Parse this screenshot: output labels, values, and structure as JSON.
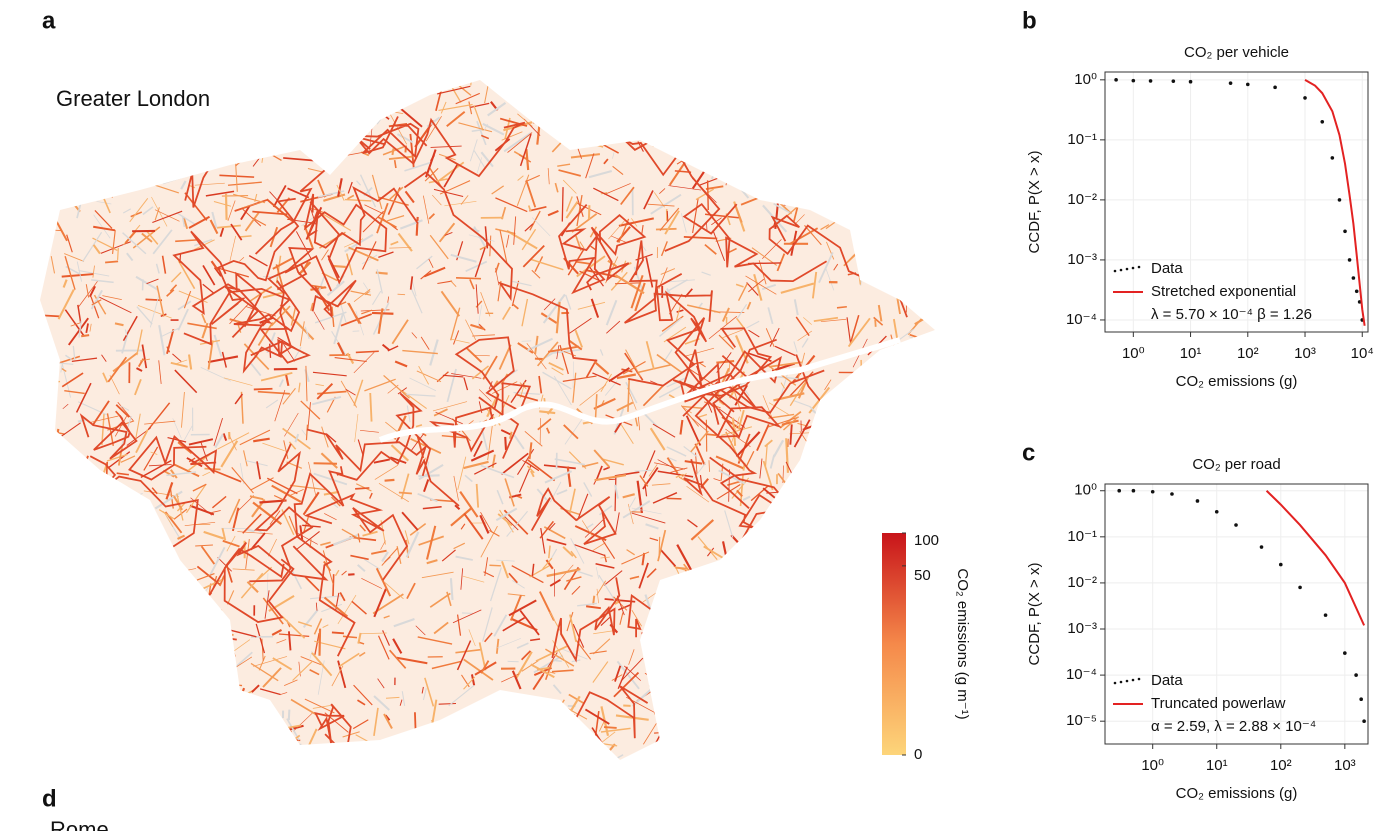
{
  "panel_labels": [
    "a",
    "b",
    "c",
    "d"
  ],
  "map": {
    "title": "Greater London",
    "next_title": "Rome",
    "colorbar": {
      "label": "CO₂ emissions (g m⁻¹)",
      "lim": [
        0,
        100
      ],
      "ticks": [
        0,
        50,
        100
      ],
      "scale": "symlog",
      "colors": [
        "#fdd57a",
        "#f5894a",
        "#c8141a"
      ]
    }
  },
  "chart_data": [
    {
      "type": "line",
      "title": "CO₂ per vehicle",
      "xlabel": "CO₂ emissions (g)",
      "ylabel": "CCDF, P(X > x)",
      "log_x": true,
      "log_y": true,
      "grid": true,
      "legend": "lower left",
      "xlim": [
        0.32,
        12600
      ],
      "xticks": [
        {
          "value": 1,
          "label": "10⁰"
        },
        {
          "value": 10,
          "label": "10¹"
        },
        {
          "value": 100,
          "label": "10²"
        },
        {
          "value": 1000,
          "label": "10³"
        },
        {
          "value": 10000,
          "label": "10⁴"
        }
      ],
      "ylim": [
        6.3e-05,
        1.35
      ],
      "yticks": [
        {
          "value": 1,
          "label": "10⁰"
        },
        {
          "value": 0.1,
          "label": "10⁻¹"
        },
        {
          "value": 0.01,
          "label": "10⁻²"
        },
        {
          "value": 0.001,
          "label": "10⁻³"
        },
        {
          "value": 0.0001,
          "label": "10⁻⁴"
        }
      ],
      "annotation": "λ = 5.70 × 10⁻⁴ β = 1.26",
      "series": [
        {
          "name": "Data",
          "color": "#111111",
          "style": "points",
          "x": [
            0.5,
            1,
            2,
            5,
            10,
            50,
            100,
            300,
            1000,
            2000,
            3000,
            4000,
            5000,
            6000,
            7000,
            8000,
            9000,
            10000
          ],
          "values": [
            1,
            0.97,
            0.96,
            0.95,
            0.93,
            0.88,
            0.84,
            0.75,
            0.5,
            0.2,
            0.05,
            0.01,
            0.003,
            0.001,
            0.0005,
            0.0003,
            0.0002,
            0.0001
          ]
        },
        {
          "name": "Stretched exponential",
          "color": "#e32222",
          "style": "line",
          "x": [
            1000,
            1500,
            2000,
            3000,
            4000,
            5000,
            6000,
            7000,
            8000,
            9000,
            10000,
            11000
          ],
          "values": [
            1,
            0.8,
            0.6,
            0.3,
            0.12,
            0.04,
            0.012,
            0.004,
            0.0012,
            0.0004,
            0.00015,
            8e-05
          ]
        }
      ]
    },
    {
      "type": "line",
      "title": "CO₂ per road",
      "xlabel": "CO₂ emissions (g)",
      "ylabel": "CCDF, P(X > x)",
      "log_x": true,
      "log_y": true,
      "grid": true,
      "legend": "lower left",
      "xlim": [
        0.18,
        2300
      ],
      "xticks": [
        {
          "value": 1,
          "label": "10⁰"
        },
        {
          "value": 10,
          "label": "10¹"
        },
        {
          "value": 100,
          "label": "10²"
        },
        {
          "value": 1000,
          "label": "10³"
        }
      ],
      "ylim": [
        3.2e-06,
        1.4
      ],
      "yticks": [
        {
          "value": 1,
          "label": "10⁰"
        },
        {
          "value": 0.1,
          "label": "10⁻¹"
        },
        {
          "value": 0.01,
          "label": "10⁻²"
        },
        {
          "value": 0.001,
          "label": "10⁻³"
        },
        {
          "value": 0.0001,
          "label": "10⁻⁴"
        },
        {
          "value": 1e-05,
          "label": "10⁻⁵"
        }
      ],
      "annotation": "α = 2.59, λ = 2.88 × 10⁻⁴",
      "series": [
        {
          "name": "Data",
          "color": "#111111",
          "style": "points",
          "x": [
            0.3,
            0.5,
            1,
            2,
            5,
            10,
            20,
            50,
            100,
            200,
            500,
            1000,
            1500,
            1800,
            2000
          ],
          "values": [
            1,
            1,
            0.95,
            0.85,
            0.6,
            0.35,
            0.18,
            0.06,
            0.025,
            0.008,
            0.002,
            0.0003,
            0.0001,
            3e-05,
            1e-05
          ]
        },
        {
          "name": "Truncated powerlaw",
          "color": "#e32222",
          "style": "line",
          "x": [
            60,
            100,
            200,
            500,
            1000,
            2000
          ],
          "values": [
            1,
            0.5,
            0.18,
            0.04,
            0.01,
            0.0012
          ]
        }
      ]
    }
  ]
}
